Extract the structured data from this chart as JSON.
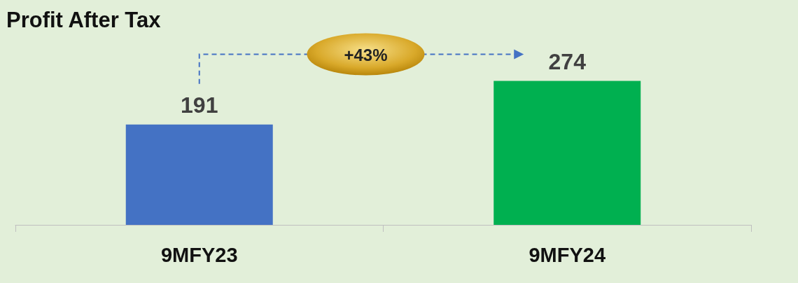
{
  "chart_data": {
    "type": "bar",
    "title": "Profit After Tax",
    "categories": [
      "9MFY23",
      "9MFY24"
    ],
    "values": [
      191,
      274
    ],
    "colors": [
      "#4472c4",
      "#00b050"
    ],
    "tick_labels": "x",
    "data_labels": true,
    "annotations": [
      "+43%"
    ]
  }
}
